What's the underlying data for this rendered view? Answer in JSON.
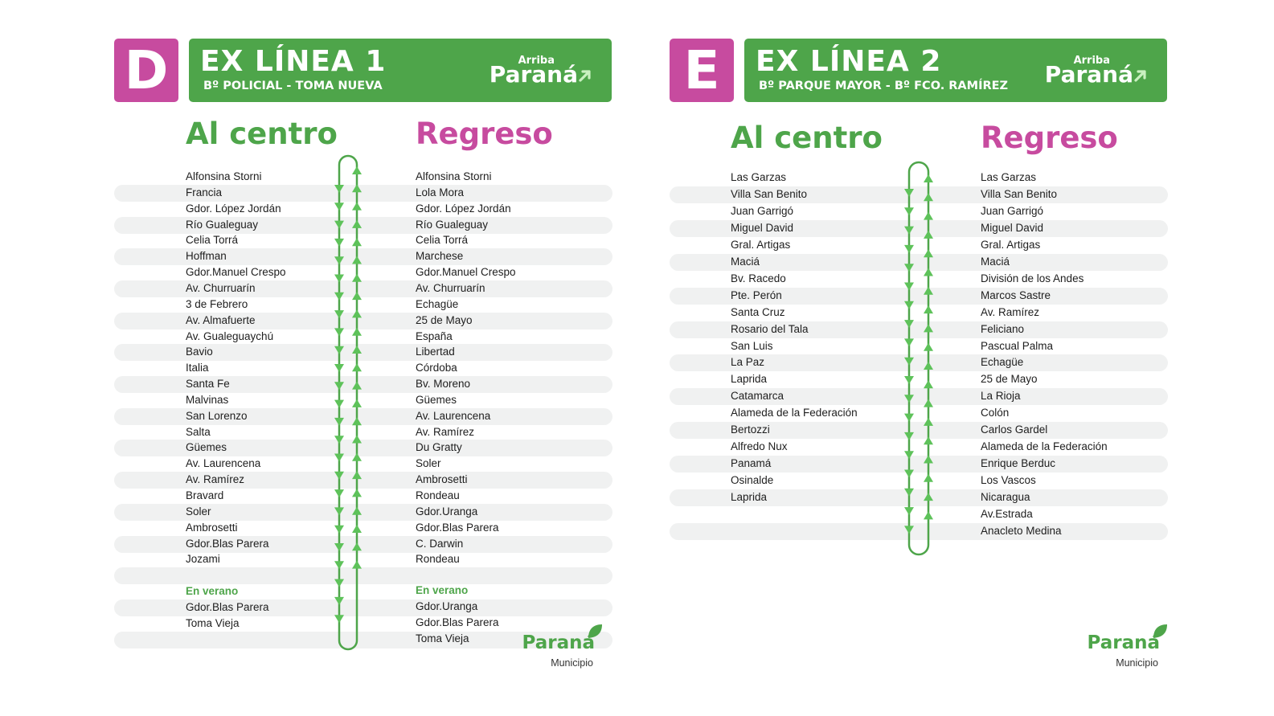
{
  "colors": {
    "green": "#4ea54a",
    "magenta": "#c74b9f",
    "row_stripe": "#f0f1f1",
    "arrow_green": "#5ec25a"
  },
  "brand": {
    "arriba": "Arriba",
    "parana": "Paraná",
    "municipio": "Municipio"
  },
  "panels": [
    {
      "letter": "D",
      "title": "EX LÍNEA 1",
      "subtitle": "Bº POLICIAL - TOMA NUEVA",
      "col_left_title": "Al centro",
      "col_right_title": "Regreso",
      "al_centro": [
        "Alfonsina Storni",
        "Francia",
        "Gdor. López Jordán",
        "Río Gualeguay",
        "Celia Torrá",
        "Hoffman",
        "Gdor.Manuel Crespo",
        "Av. Churruarín",
        "3 de Febrero",
        "Av. Almafuerte",
        "Av. Gualeguaychú",
        "Bavio",
        "Italia",
        "Santa Fe",
        "Malvinas",
        "San Lorenzo",
        "Salta",
        "Güemes",
        "Av. Laurencena",
        "Av. Ramírez",
        "Bravard",
        "Soler",
        "Ambrosetti",
        "Gdor.Blas Parera",
        "Jozami"
      ],
      "regreso": [
        "Alfonsina Storni",
        "Lola Mora",
        "Gdor. López Jordán",
        "Río Gualeguay",
        "Celia Torrá",
        "Marchese",
        "Gdor.Manuel Crespo",
        "Av. Churruarín",
        "Echagüe",
        "25 de Mayo",
        "España",
        "Libertad",
        "Córdoba",
        "Bv. Moreno",
        "Güemes",
        "Av. Laurencena",
        "Av. Ramírez",
        "Du Gratty",
        "Soler",
        "Ambrosetti",
        "Rondeau",
        "Gdor.Uranga",
        "Gdor.Blas Parera",
        "C. Darwin",
        "Rondeau"
      ],
      "verano_label": "En verano",
      "verano_left": [
        "Gdor.Blas Parera",
        "Toma Vieja"
      ],
      "verano_right": [
        "Gdor.Uranga",
        "Gdor.Blas Parera",
        "Toma Vieja"
      ]
    },
    {
      "letter": "E",
      "title": "EX LÍNEA 2",
      "subtitle": "Bº PARQUE MAYOR - Bº FCO. RAMÍREZ",
      "col_left_title": "Al centro",
      "col_right_title": "Regreso",
      "al_centro": [
        "Las Garzas",
        "Villa San Benito",
        "Juan Garrigó",
        "Miguel David",
        "Gral. Artigas",
        "Maciá",
        "Bv. Racedo",
        "Pte. Perón",
        "Santa Cruz",
        "Rosario del Tala",
        "San Luis",
        "La Paz",
        "Laprida",
        "Catamarca",
        "Alameda de la Federación",
        "Bertozzi",
        "Alfredo Nux",
        "Panamá",
        "Osinalde",
        "Laprida"
      ],
      "regreso": [
        "Las Garzas",
        "Villa San Benito",
        "Juan Garrigó",
        "Miguel David",
        "Gral. Artigas",
        "Maciá",
        "División de los Andes",
        "Marcos Sastre",
        "Av. Ramírez",
        "Feliciano",
        "Pascual  Palma",
        "Echagüe",
        "25 de Mayo",
        "La Rioja",
        "Colón",
        "Carlos Gardel",
        "Alameda de la Federación",
        "Enrique Berduc",
        "Los Vascos",
        "Nicaragua",
        "Av.Estrada",
        "Anacleto Medina"
      ]
    }
  ]
}
